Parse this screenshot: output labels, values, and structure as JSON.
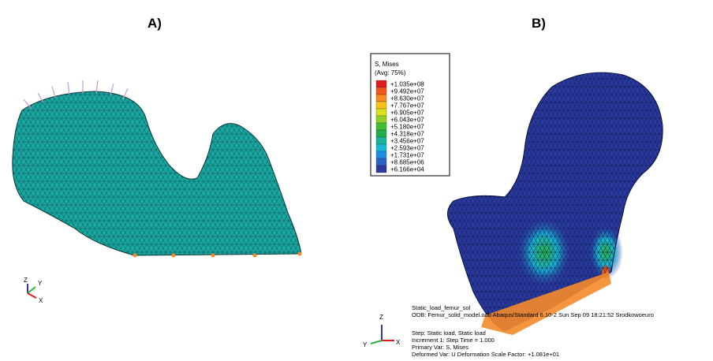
{
  "panels": [
    {
      "label": "A)",
      "triad": {
        "z": "Z",
        "y": "Y",
        "x": "X"
      }
    },
    {
      "label": "B)",
      "triad": {
        "z": "Z",
        "y": "Y",
        "x": "X"
      }
    }
  ],
  "legend": {
    "title": "S, Mises",
    "subtitle": "(Avg: 75%)",
    "entries": [
      {
        "label": "+1.035e+08",
        "color": "#e31a1c"
      },
      {
        "label": "+9.492e+07",
        "color": "#f4561c"
      },
      {
        "label": "+8.630e+07",
        "color": "#f68b1f"
      },
      {
        "label": "+7.767e+07",
        "color": "#f5c218"
      },
      {
        "label": "+6.905e+07",
        "color": "#d7e21a"
      },
      {
        "label": "+6.043e+07",
        "color": "#8fd125"
      },
      {
        "label": "+5.180e+07",
        "color": "#3fbf2f"
      },
      {
        "label": "+4.318e+07",
        "color": "#1fae4a"
      },
      {
        "label": "+3.456e+07",
        "color": "#19b59a"
      },
      {
        "label": "+2.593e+07",
        "color": "#17b8d6"
      },
      {
        "label": "+1.731e+07",
        "color": "#1a8fe0"
      },
      {
        "label": "+8.685e+06",
        "color": "#2a5fc8"
      },
      {
        "label": "+6.166e+04",
        "color": "#2a3aa0"
      }
    ]
  },
  "info": [
    "Static_load_femur_sol",
    "ODB: Femur_solid_model.odb    Abaqus/Standard 6.10-2    Sun Sep 09 18:21:52 Srodkowoeuro",
    "Step: Static load, Static load",
    "Increment    1: Step Time =    1.000",
    "Primary Var: S, Mises",
    "Deformed Var: U   Deformation Scale Factor: +1.081e+01"
  ]
}
